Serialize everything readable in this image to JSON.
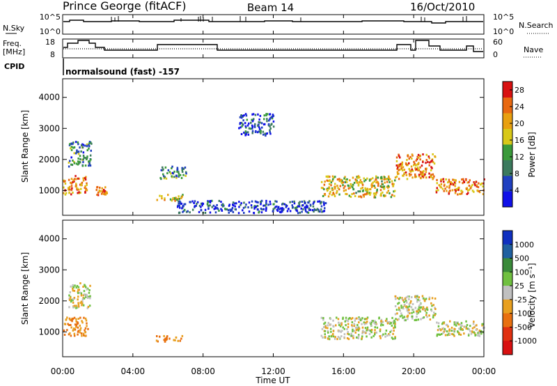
{
  "header": {
    "station": "Prince George (fitACF)",
    "beam": "Beam 14",
    "date": "16/Oct/2010"
  },
  "housekeeping": {
    "nsky_label": "N.Sky",
    "nsky_ticks": [
      "10^5",
      "10^0"
    ],
    "nsearch_label": "N.Search",
    "nsearch_ticks": [
      "10^5",
      "10^0"
    ],
    "freq_label": "Freq.",
    "freq_unit": "[MHz]",
    "freq_ticks": [
      "18",
      "8"
    ],
    "nave_label": "Nave",
    "nave_ticks": [
      "60",
      "0"
    ],
    "cpid_label": "CPID",
    "cpid_text": "normalsound (fast) -157"
  },
  "colors": {
    "power_scale": [
      "#1010e8",
      "#2040c0",
      "#3c7a5e",
      "#3a9a3a",
      "#d8c818",
      "#e8a010",
      "#e86810",
      "#d81010"
    ],
    "velocity_scale": [
      "#1030c0",
      "#2060a0",
      "#3a8a3a",
      "#70c040",
      "#c0c0c0",
      "#e8a020",
      "#e87010",
      "#e03010",
      "#d81010"
    ]
  },
  "chart_data": [
    {
      "type": "heatmap",
      "name": "power",
      "ylabel": "Slant Range [km]",
      "yticks": [
        1000,
        2000,
        3000,
        4000
      ],
      "ylim": [
        200,
        4600
      ],
      "xticks": [
        "00:00",
        "04:00",
        "08:00",
        "12:00",
        "16:00",
        "20:00",
        "00:00"
      ],
      "xlim_hours": [
        0,
        24
      ],
      "colorbar": {
        "label": "Power [dB]",
        "ticks": [
          "4",
          "8",
          "12",
          "16",
          "20",
          "24",
          "28"
        ],
        "range": [
          0,
          30
        ]
      },
      "echo_regions": [
        {
          "t0": 0.0,
          "t1": 1.4,
          "r0": 900,
          "r1": 1500,
          "value": 22
        },
        {
          "t0": 0.3,
          "t1": 1.6,
          "r0": 1800,
          "r1": 2600,
          "value": 10
        },
        {
          "t0": 1.8,
          "t1": 2.5,
          "r0": 850,
          "r1": 1150,
          "value": 24
        },
        {
          "t0": 5.3,
          "t1": 6.8,
          "r0": 700,
          "r1": 900,
          "value": 18
        },
        {
          "t0": 5.5,
          "t1": 7.0,
          "r0": 1400,
          "r1": 1800,
          "value": 10
        },
        {
          "t0": 6.5,
          "t1": 15.0,
          "r0": 300,
          "r1": 700,
          "value": 5
        },
        {
          "t0": 14.7,
          "t1": 18.9,
          "r0": 800,
          "r1": 1500,
          "value": 18
        },
        {
          "t0": 18.9,
          "t1": 21.2,
          "r0": 1400,
          "r1": 2200,
          "value": 22
        },
        {
          "t0": 21.2,
          "t1": 24.0,
          "r0": 900,
          "r1": 1400,
          "value": 22
        },
        {
          "t0": 10.0,
          "t1": 12.0,
          "r0": 2800,
          "r1": 3500,
          "value": 6
        }
      ]
    },
    {
      "type": "heatmap",
      "name": "velocity",
      "xlabel": "Time UT",
      "ylabel": "Slant Range [km]",
      "yticks": [
        1000,
        2000,
        3000,
        4000
      ],
      "ylim": [
        200,
        4600
      ],
      "xticks": [
        "00:00",
        "04:00",
        "08:00",
        "12:00",
        "16:00",
        "20:00",
        "00:00"
      ],
      "xlim_hours": [
        0,
        24
      ],
      "colorbar": {
        "label": "Velocity [m s⁻¹]",
        "ticks": [
          "1000",
          "500",
          "100",
          "25",
          "-25",
          "-100",
          "-500",
          "-1000"
        ]
      },
      "echo_regions": [
        {
          "t0": 0.0,
          "t1": 1.4,
          "r0": 900,
          "r1": 1500,
          "value": -120
        },
        {
          "t0": 0.3,
          "t1": 1.6,
          "r0": 1800,
          "r1": 2600,
          "value": 0
        },
        {
          "t0": 5.3,
          "t1": 6.8,
          "r0": 700,
          "r1": 900,
          "value": -110
        },
        {
          "t0": 14.7,
          "t1": 18.9,
          "r0": 800,
          "r1": 1500,
          "value": 0
        },
        {
          "t0": 18.9,
          "t1": 21.2,
          "r0": 1400,
          "r1": 2200,
          "value": 0
        },
        {
          "t0": 21.2,
          "t1": 24.0,
          "r0": 900,
          "r1": 1400,
          "value": 0
        }
      ]
    }
  ]
}
